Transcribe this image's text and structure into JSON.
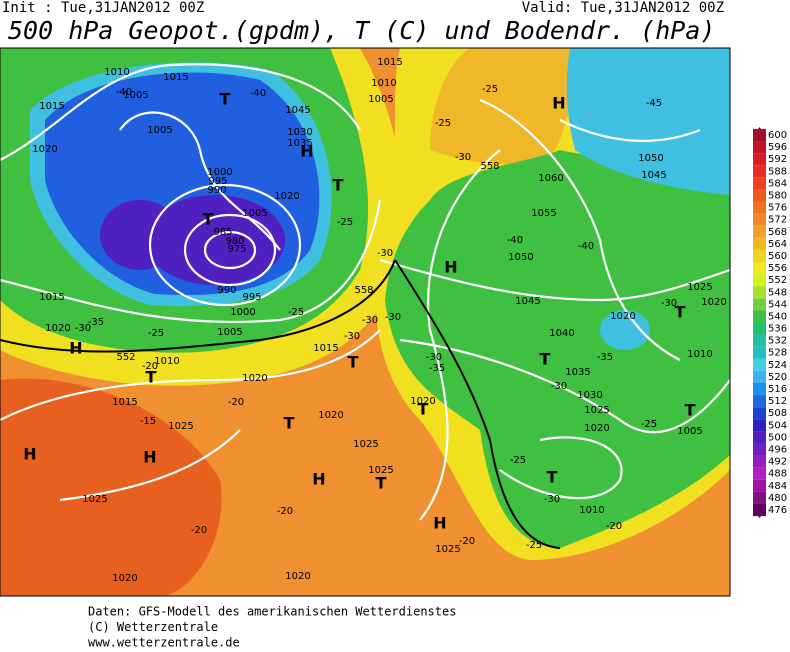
{
  "header": {
    "init": "Init : Tue,31JAN2012 00Z",
    "valid": "Valid: Tue,31JAN2012 00Z",
    "title": "500 hPa Geopot.(gpdm), T (C) und Bodendr. (hPa)"
  },
  "colorbar": {
    "levels": [
      600,
      596,
      592,
      588,
      584,
      580,
      576,
      572,
      568,
      564,
      560,
      556,
      552,
      548,
      544,
      540,
      536,
      532,
      528,
      524,
      520,
      516,
      512,
      508,
      504,
      500,
      496,
      492,
      488,
      484,
      480,
      476
    ],
    "colors": [
      "#a0102a",
      "#c0142c",
      "#d81c28",
      "#e82c20",
      "#f04020",
      "#f05820",
      "#f07020",
      "#f08828",
      "#f0a030",
      "#f0b828",
      "#f0d020",
      "#f0e820",
      "#d8f020",
      "#a8e030",
      "#70d040",
      "#40c040",
      "#20c070",
      "#20c0a0",
      "#20c0c0",
      "#40d0e8",
      "#40b0f0",
      "#2090f0",
      "#2068e0",
      "#2040d0",
      "#3020c0",
      "#5020c0",
      "#7020c0",
      "#9020c0",
      "#b020c0",
      "#a010a8",
      "#801080",
      "#600060"
    ]
  },
  "map_labels": [
    "1010",
    "1015",
    "1005",
    "-40",
    "1005",
    "1015",
    "1020",
    "T",
    "-40",
    "1045",
    "1030",
    "1035",
    "H",
    "1000",
    "995",
    "990",
    "T",
    "1005",
    "985",
    "980",
    "975",
    "990",
    "995",
    "1000",
    "1005",
    "1020",
    "T",
    "-25",
    "1015",
    "1020",
    "-30",
    "-35",
    "-25",
    "H",
    "552",
    "-20",
    "T",
    "1010",
    "1015",
    "1020",
    "1015",
    "-20",
    "-15",
    "1025",
    "T",
    "1020",
    "H",
    "H",
    "1025",
    "-20",
    "1020",
    "1020",
    "-20",
    "H",
    "T",
    "1025",
    "1025",
    "H",
    "1025",
    "-20",
    "-25",
    "T",
    "-30",
    "1010",
    "-20",
    "-25",
    "H",
    "-45",
    "1050",
    "1045",
    "1060",
    "1055",
    "-40",
    "-40",
    "1050",
    "H",
    "1045",
    "1040",
    "T",
    "1035",
    "-30",
    "1030",
    "1025",
    "1020",
    "-25",
    "T",
    "1005",
    "1010",
    "-30",
    "T",
    "1025",
    "1020",
    "1020",
    "-35",
    "T",
    "1020",
    "-35",
    "-30",
    "-30",
    "-30",
    "T",
    "558",
    "-30",
    "-30",
    "558",
    "-25",
    "-25",
    "1005",
    "1010",
    "1015",
    "-25",
    "-30"
  ],
  "footer": [
    "Daten: GFS-Modell des amerikanischen Wetterdienstes",
    "(C) Wetterzentrale",
    "www.wetterzentrale.de"
  ]
}
